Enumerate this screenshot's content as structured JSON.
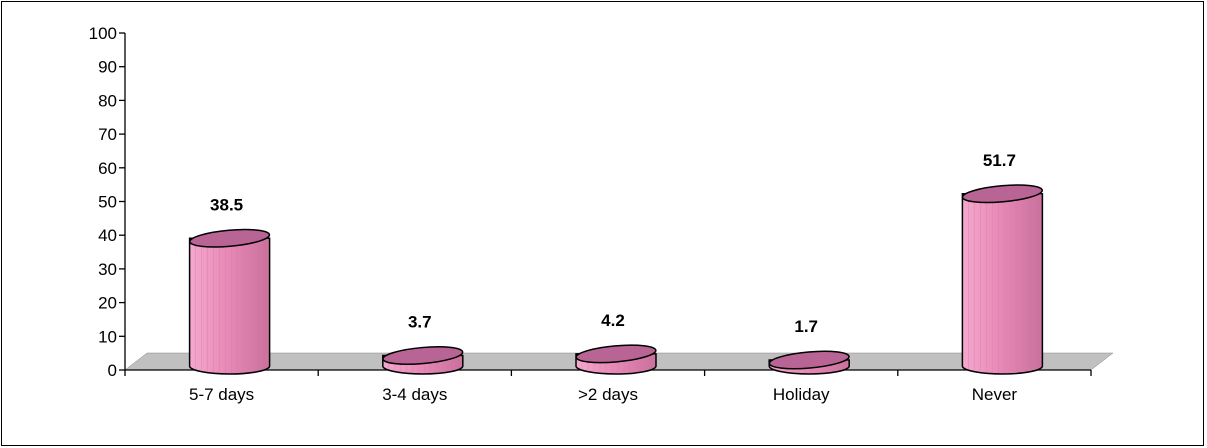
{
  "chart_data": {
    "type": "bar",
    "style": "3d-cylinder",
    "categories": [
      "5-7 days",
      "3-4 days",
      ">2 days",
      "Holiday",
      "Never"
    ],
    "values": [
      38.5,
      3.7,
      4.2,
      1.7,
      51.7
    ],
    "data_labels": [
      "38.5",
      "3.7",
      "4.2",
      "1.7",
      "51.7"
    ],
    "title": "",
    "xlabel": "",
    "ylabel": "",
    "ylim": [
      0,
      100
    ],
    "yticks": [
      0,
      10,
      20,
      30,
      40,
      50,
      60,
      70,
      80,
      90,
      100
    ],
    "ytick_labels": [
      "0",
      "10",
      "20",
      "30",
      "40",
      "50",
      "60",
      "70",
      "80",
      "90",
      "100"
    ],
    "grid": false,
    "legend": "none",
    "colors": {
      "bar_fill": "#e98ab8",
      "bar_top": "#b86494",
      "bar_stroke": "#000000",
      "floor": "#c0c0c0"
    }
  }
}
